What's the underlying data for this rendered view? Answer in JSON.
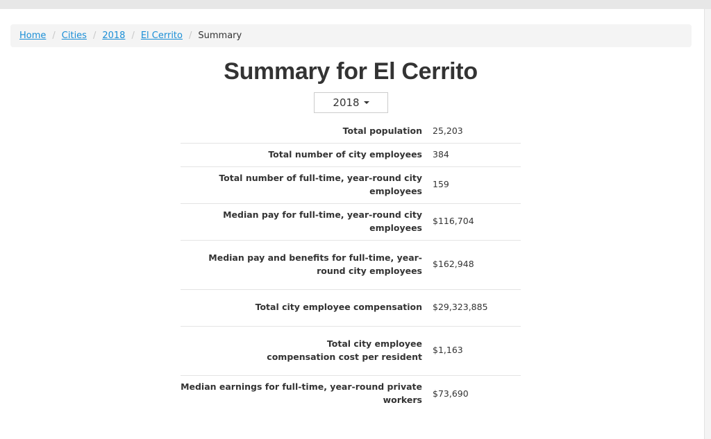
{
  "breadcrumb": {
    "items": [
      {
        "label": "Home"
      },
      {
        "label": "Cities"
      },
      {
        "label": "2018"
      },
      {
        "label": "El Cerrito"
      }
    ],
    "current": "Summary",
    "separator": "/"
  },
  "title": "Summary for El Cerrito",
  "year_select": {
    "value": "2018"
  },
  "rows": [
    {
      "label": "Total population",
      "value": "25,203"
    },
    {
      "label": "Total number of city employees",
      "value": "384"
    },
    {
      "label": "Total number of full-time, year-round city employees",
      "value": "159"
    },
    {
      "label": "Median pay for full-time, year-round city employees",
      "value": "$116,704"
    },
    {
      "label": "Median pay and benefits for full-time, year-round city employees",
      "value": "$162,948"
    },
    {
      "label": "Total city employee compensation",
      "value": "$29,323,885"
    },
    {
      "label": "Total city employee compensation cost per resident",
      "value": "$1,163"
    },
    {
      "label": "Median earnings for full-time, year-round private workers",
      "value": "$73,690"
    }
  ]
}
